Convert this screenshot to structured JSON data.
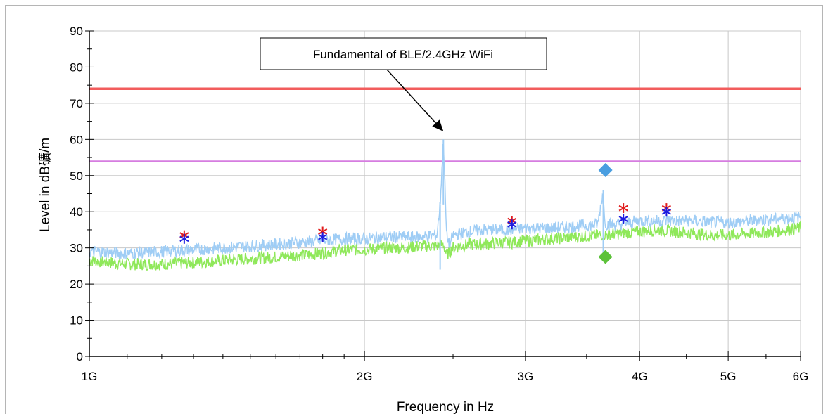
{
  "chart_data": {
    "type": "line",
    "xlabel": "Frequency in Hz",
    "ylabel": "Level in dB礦/m",
    "x_scale": "log",
    "xlim": [
      1000000000,
      6000000000
    ],
    "ylim": [
      0,
      90
    ],
    "x_ticks": [
      {
        "value": 1000000000,
        "label": "1G"
      },
      {
        "value": 2000000000,
        "label": "2G"
      },
      {
        "value": 3000000000,
        "label": "3G"
      },
      {
        "value": 4000000000,
        "label": "4G"
      },
      {
        "value": 5000000000,
        "label": "5G"
      },
      {
        "value": 6000000000,
        "label": "6G"
      }
    ],
    "y_ticks": [
      0,
      10,
      20,
      30,
      40,
      50,
      60,
      70,
      80,
      90
    ],
    "grid": true,
    "limit_lines": [
      {
        "value": 74,
        "color": "#f25c5c"
      },
      {
        "value": 54,
        "color": "#d67de0"
      }
    ],
    "series": [
      {
        "color": "#9fcdf5",
        "x": [
          1000000000,
          1100000000,
          1200000000,
          1300000000,
          1400000000,
          1500000000,
          1600000000,
          1700000000,
          1800000000,
          1900000000,
          2000000000,
          2100000000,
          2200000000,
          2300000000,
          2400000000,
          2420000000,
          2440000000,
          2460000000,
          2480000000,
          2500000000,
          2550000000,
          2600000000,
          2700000000,
          2800000000,
          2900000000,
          3000000000,
          3200000000,
          3400000000,
          3600000000,
          3650000000,
          3660000000,
          3680000000,
          3800000000,
          4000000000,
          4200000000,
          4400000000,
          4600000000,
          4800000000,
          5000000000,
          5300000000,
          5600000000,
          6000000000
        ],
        "y": [
          29,
          28.5,
          29,
          29.5,
          30,
          30.5,
          31,
          31.5,
          32,
          32.5,
          32.5,
          33,
          33,
          33,
          33.5,
          42,
          60,
          33,
          31,
          33.5,
          34,
          34.5,
          35,
          35,
          35,
          35.5,
          35.5,
          36,
          36.5,
          46,
          38,
          36.5,
          36.5,
          37.5,
          37.5,
          37.5,
          37.5,
          37,
          37,
          37.5,
          38,
          38.5
        ]
      },
      {
        "color": "#8fe85a",
        "x": [
          1000000000,
          1100000000,
          1200000000,
          1300000000,
          1400000000,
          1500000000,
          1600000000,
          1700000000,
          1800000000,
          1900000000,
          2000000000,
          2100000000,
          2200000000,
          2300000000,
          2400000000,
          2440000000,
          2460000000,
          2500000000,
          2550000000,
          2600000000,
          2700000000,
          2800000000,
          2900000000,
          3000000000,
          3200000000,
          3400000000,
          3600000000,
          3800000000,
          4000000000,
          4200000000,
          4400000000,
          4600000000,
          4800000000,
          5000000000,
          5300000000,
          5600000000,
          6000000000
        ],
        "y": [
          26.5,
          25.5,
          25.5,
          26,
          26.5,
          27,
          27.5,
          28,
          28.5,
          29.5,
          29.5,
          30,
          30,
          30.5,
          30.5,
          31,
          28,
          30,
          30.5,
          31,
          31,
          31.5,
          31.5,
          32,
          32.5,
          33,
          33.5,
          34,
          34.5,
          35,
          34.5,
          34,
          33.5,
          33.5,
          34,
          34.5,
          35.5
        ]
      }
    ],
    "markers": [
      {
        "x": 1270000000,
        "y": 33.5,
        "symbol": "asterisk",
        "color": "#e11d1d"
      },
      {
        "x": 1270000000,
        "y": 32.5,
        "symbol": "asterisk",
        "color": "#1d1de0"
      },
      {
        "x": 1800000000,
        "y": 34.5,
        "symbol": "asterisk",
        "color": "#e11d1d"
      },
      {
        "x": 1800000000,
        "y": 33,
        "symbol": "asterisk",
        "color": "#1d1de0"
      },
      {
        "x": 2900000000,
        "y": 37.5,
        "symbol": "asterisk",
        "color": "#e11d1d"
      },
      {
        "x": 2900000000,
        "y": 36.5,
        "symbol": "asterisk",
        "color": "#1d1de0"
      },
      {
        "x": 3840000000,
        "y": 41,
        "symbol": "asterisk",
        "color": "#e11d1d"
      },
      {
        "x": 3840000000,
        "y": 38,
        "symbol": "asterisk",
        "color": "#1d1de0"
      },
      {
        "x": 4280000000,
        "y": 41,
        "symbol": "asterisk",
        "color": "#e11d1d"
      },
      {
        "x": 4280000000,
        "y": 40,
        "symbol": "asterisk",
        "color": "#1d1de0"
      },
      {
        "x": 3670000000,
        "y": 51.5,
        "symbol": "diamond",
        "color": "#4a9ee0"
      },
      {
        "x": 3670000000,
        "y": 27.5,
        "symbol": "diamond",
        "color": "#5cc23a"
      }
    ],
    "annotations": [
      {
        "text": "Fundamental of BLE/2.4GHz WiFi",
        "arrow_to": {
          "x": 2440000000,
          "y": 63
        }
      }
    ]
  }
}
